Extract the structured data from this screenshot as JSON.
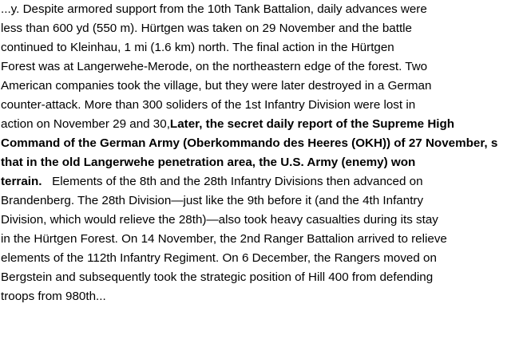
{
  "document": {
    "lines": [
      {
        "normal": "...y. Despite armored support from the 10th Tank Battalion, daily advances were"
      },
      {
        "normal": "less than 600 yd (550 m). Hürtgen was taken on 29 November and the battle"
      },
      {
        "normal": "continued to Kleinhau, 1 mi (1.6 km) north.  The final action in the Hürtgen"
      },
      {
        "normal": "Forest was at Langerwehe-Merode, on the northeastern edge of the forest. Two"
      },
      {
        "normal": "American companies took the village, but they were later destroyed in a German"
      },
      {
        "normal": "counter-attack. More than 300 soliders of the 1st Infantry Division were lost in"
      },
      {
        "normal": "action on November 29 and 30,",
        "bold": "Later, the secret daily report of the Supreme High"
      },
      {
        "bold": "Command of the German Army (Oberkommando des Heeres (OKH)) of 27 November, s"
      },
      {
        "bold": "that in the old Langerwehe penetration area, the U.S. Army (enemy) won"
      },
      {
        "bold": "terrain.",
        "normal_after": "   Elements of the 8th and the 28th Infantry Divisions then advanced on"
      },
      {
        "normal": "Brandenberg. The 28th Division—just like the 9th before it (and the 4th Infantry"
      },
      {
        "normal": "Division, which would relieve the 28th)—also took heavy casualties during its stay"
      },
      {
        "normal": "in the Hürtgen Forest. On 14 November, the 2nd Ranger Battalion arrived to relieve"
      },
      {
        "normal": "elements of the 112th Infantry Regiment. On 6 December, the Rangers moved on"
      },
      {
        "normal": "Bergstein and subsequently took the strategic position of Hill 400 from defending"
      },
      {
        "normal": "troops from 980th..."
      }
    ]
  }
}
